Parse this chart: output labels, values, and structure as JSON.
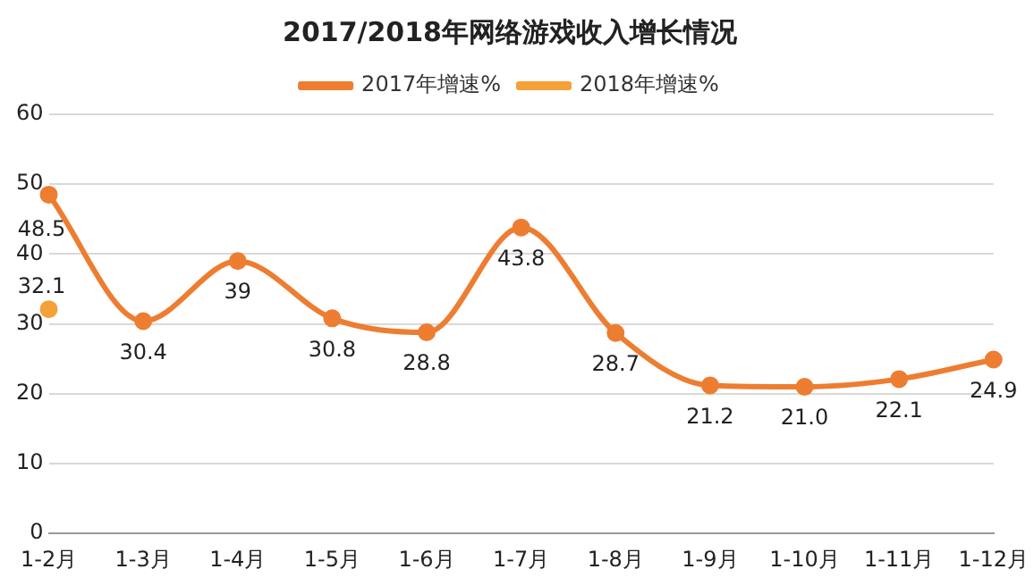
{
  "chart_data": {
    "type": "line",
    "title": "2017/2018年网络游戏收入增长情况",
    "categories": [
      "1-2月",
      "1-3月",
      "1-4月",
      "1-5月",
      "1-6月",
      "1-7月",
      "1-8月",
      "1-9月",
      "1-10月",
      "1-11月",
      "1-12月"
    ],
    "series": [
      {
        "name": "2017年增速%",
        "color": "#ed7d31",
        "values": [
          48.5,
          30.4,
          39,
          30.8,
          28.8,
          43.8,
          28.7,
          21.2,
          21.0,
          22.1,
          24.9
        ],
        "value_labels": [
          "48.5",
          "30.4",
          "39",
          "30.8",
          "28.8",
          "43.8",
          "28.7",
          "21.2",
          "21.0",
          "22.1",
          "24.9"
        ]
      },
      {
        "name": "2018年增速%",
        "color": "#f4a13a",
        "values": [
          32.1,
          null,
          null,
          null,
          null,
          null,
          null,
          null,
          null,
          null,
          null
        ],
        "value_labels": [
          "32.1",
          null,
          null,
          null,
          null,
          null,
          null,
          null,
          null,
          null,
          null
        ]
      }
    ],
    "ylim": [
      0,
      60
    ],
    "yticks": [
      0,
      10,
      20,
      30,
      40,
      50,
      60
    ],
    "grid": "y",
    "legend": "top",
    "marker": "circle",
    "line_style": "solid"
  }
}
